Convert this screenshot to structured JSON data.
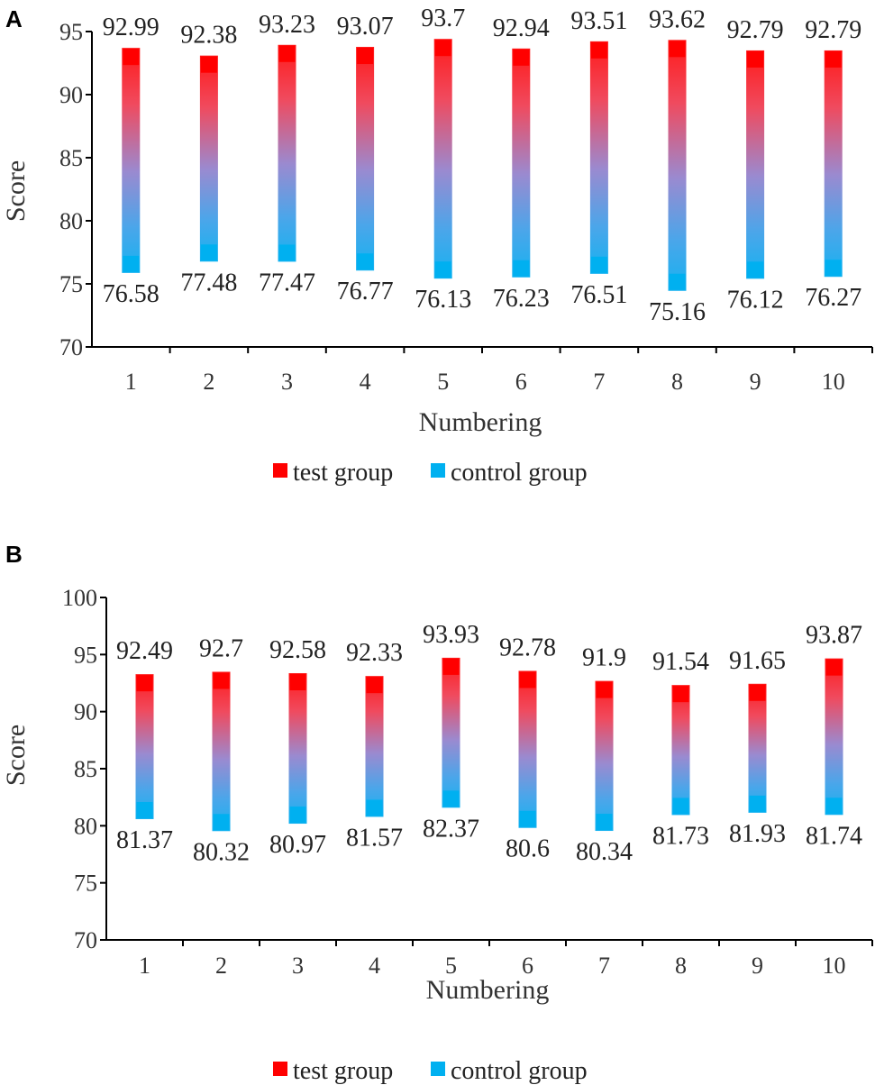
{
  "chart_data": [
    {
      "type": "floating-bar",
      "panel": "A",
      "categories": [
        "1",
        "2",
        "3",
        "4",
        "5",
        "6",
        "7",
        "8",
        "9",
        "10"
      ],
      "series": [
        {
          "name": "test group",
          "color": "#ff0000",
          "values": [
            92.99,
            92.38,
            93.23,
            93.07,
            93.7,
            92.94,
            93.51,
            93.62,
            92.79,
            92.79
          ]
        },
        {
          "name": "control group",
          "color": "#00b0f0",
          "values": [
            76.58,
            77.48,
            77.47,
            76.77,
            76.13,
            76.23,
            76.51,
            75.16,
            76.12,
            76.27
          ]
        }
      ],
      "value_labels": {
        "test": [
          "92.99",
          "92.38",
          "93.23",
          "93.07",
          "93.7",
          "92.94",
          "93.51",
          "93.62",
          "92.79",
          "92.79"
        ],
        "control": [
          "76.58",
          "77.48",
          "77.47",
          "76.77",
          "76.13",
          "76.23",
          "76.51",
          "75.16",
          "76.12",
          "76.27"
        ]
      },
      "xlabel": "Numbering",
      "ylabel": "Score",
      "ylim": [
        70,
        95
      ],
      "yticks": [
        "70",
        "75",
        "80",
        "85",
        "90",
        "95"
      ],
      "legend": "bottom"
    },
    {
      "type": "floating-bar",
      "panel": "B",
      "categories": [
        "1",
        "2",
        "3",
        "4",
        "5",
        "6",
        "7",
        "8",
        "9",
        "10"
      ],
      "series": [
        {
          "name": "test group",
          "color": "#ff0000",
          "values": [
            92.49,
            92.7,
            92.58,
            92.33,
            93.93,
            92.78,
            91.9,
            91.54,
            91.65,
            93.87
          ]
        },
        {
          "name": "control group",
          "color": "#00b0f0",
          "values": [
            81.37,
            80.32,
            80.97,
            81.57,
            82.37,
            80.6,
            80.34,
            81.73,
            81.93,
            81.74
          ]
        }
      ],
      "value_labels": {
        "test": [
          "92.49",
          "92.7",
          "92.58",
          "92.33",
          "93.93",
          "92.78",
          "91.9",
          "91.54",
          "91.65",
          "93.87"
        ],
        "control": [
          "81.37",
          "80.32",
          "80.97",
          "81.57",
          "82.37",
          "80.6",
          "80.34",
          "81.73",
          "81.93",
          "81.74"
        ]
      },
      "xlabel": "Numbering",
      "ylabel": "Score",
      "ylim": [
        70,
        100
      ],
      "yticks": [
        "70",
        "75",
        "80",
        "85",
        "90",
        "95",
        "100"
      ],
      "legend": "bottom"
    }
  ]
}
